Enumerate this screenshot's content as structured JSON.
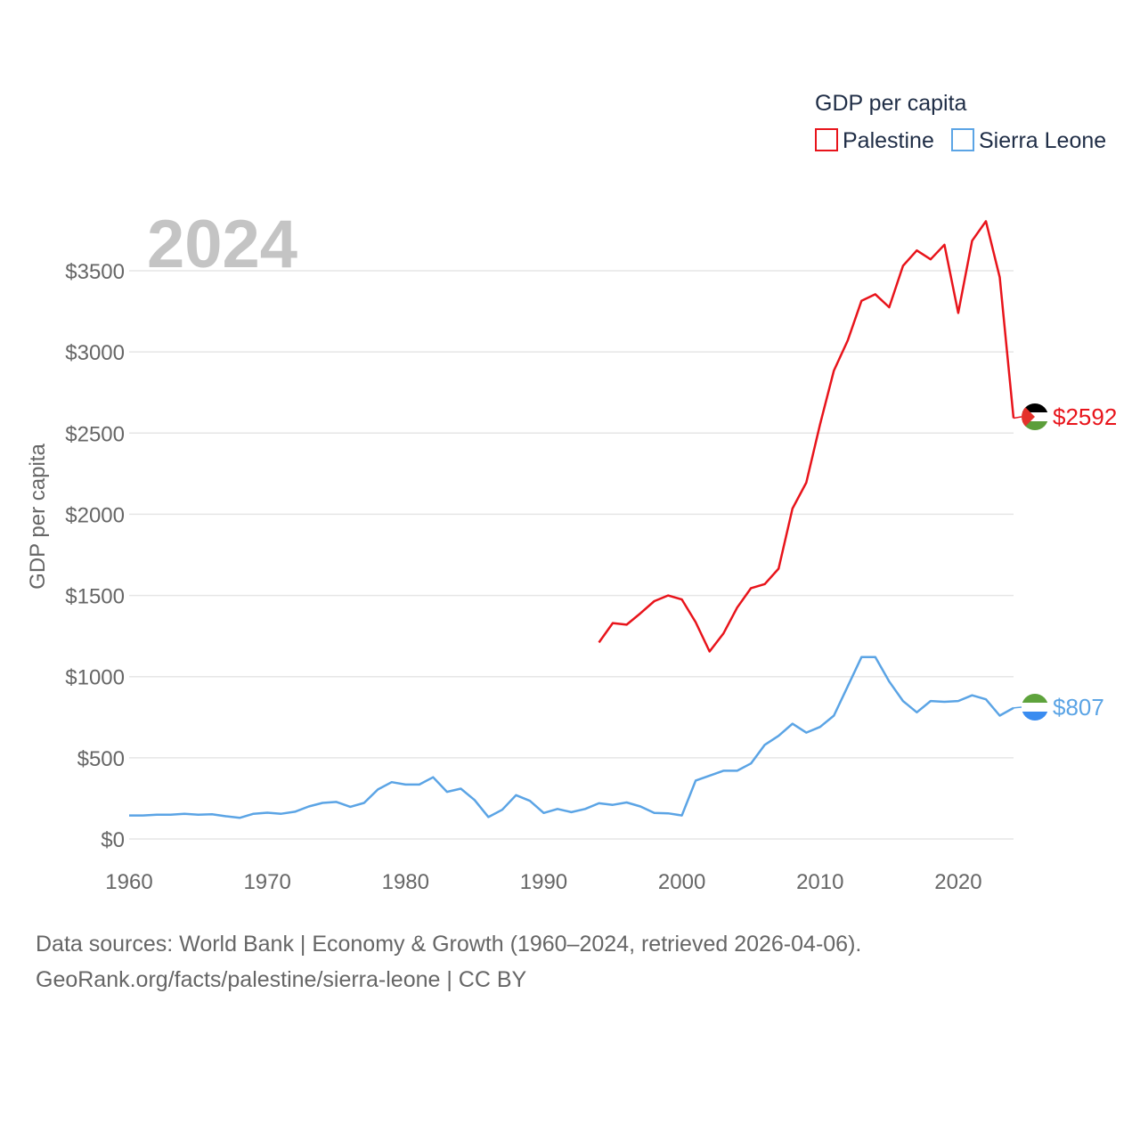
{
  "chart_data": {
    "type": "line",
    "title": "GDP per capita",
    "year_label": "2024",
    "xlabel": "",
    "ylabel": "GDP per capita",
    "xlim": [
      1960,
      2024
    ],
    "ylim": [
      0,
      3750
    ],
    "x_ticks": [
      1960,
      1970,
      1980,
      1990,
      2000,
      2010,
      2020
    ],
    "x_tick_labels": [
      "1960",
      "1970",
      "1980",
      "1990",
      "2000",
      "2010",
      "2020"
    ],
    "y_ticks": [
      0,
      500,
      1000,
      1500,
      2000,
      2500,
      3000,
      3500
    ],
    "y_tick_labels": [
      "$0",
      "$500",
      "$1000",
      "$1500",
      "$2000",
      "$2500",
      "$3000",
      "$3500"
    ],
    "legend_position": "top-right",
    "series": [
      {
        "name": "Palestine",
        "color": "#e8141b",
        "end_label": "$2592",
        "flag": "palestine-flag",
        "x": [
          1994,
          1995,
          1996,
          1997,
          1998,
          1999,
          2000,
          2001,
          2002,
          2003,
          2004,
          2005,
          2006,
          2007,
          2008,
          2009,
          2010,
          2011,
          2012,
          2013,
          2014,
          2015,
          2016,
          2017,
          2018,
          2019,
          2020,
          2021,
          2022,
          2023,
          2024
        ],
        "values": [
          1210,
          1330,
          1320,
          1390,
          1465,
          1500,
          1475,
          1335,
          1155,
          1265,
          1425,
          1545,
          1570,
          1665,
          2035,
          2195,
          2555,
          2885,
          3070,
          3315,
          3355,
          3275,
          3530,
          3625,
          3570,
          3660,
          3240,
          3685,
          3805,
          3460,
          2592
        ]
      },
      {
        "name": "Sierra Leone",
        "color": "#5ba4e5",
        "end_label": "$807",
        "flag": "sierra-leone-flag",
        "x": [
          1960,
          1961,
          1962,
          1963,
          1964,
          1965,
          1966,
          1967,
          1968,
          1969,
          1970,
          1971,
          1972,
          1973,
          1974,
          1975,
          1976,
          1977,
          1978,
          1979,
          1980,
          1981,
          1982,
          1983,
          1984,
          1985,
          1986,
          1987,
          1988,
          1989,
          1990,
          1991,
          1992,
          1993,
          1994,
          1995,
          1996,
          1997,
          1998,
          1999,
          2000,
          2001,
          2002,
          2003,
          2004,
          2005,
          2006,
          2007,
          2008,
          2009,
          2010,
          2011,
          2012,
          2013,
          2014,
          2015,
          2016,
          2017,
          2018,
          2019,
          2020,
          2021,
          2022,
          2023,
          2024
        ],
        "values": [
          145,
          145,
          150,
          150,
          155,
          150,
          152,
          140,
          130,
          155,
          162,
          155,
          168,
          200,
          222,
          228,
          198,
          222,
          305,
          350,
          335,
          335,
          380,
          290,
          310,
          240,
          135,
          180,
          270,
          235,
          160,
          185,
          165,
          185,
          220,
          210,
          225,
          200,
          160,
          158,
          145,
          360,
          390,
          420,
          420,
          465,
          580,
          635,
          710,
          655,
          690,
          760,
          940,
          1120,
          1120,
          970,
          850,
          780,
          850,
          845,
          850,
          885,
          860,
          760,
          807
        ]
      }
    ]
  },
  "footer": {
    "line1": "Data sources: World Bank | Economy & Growth (1960–2024, retrieved 2026-04-06).",
    "line2": "GeoRank.org/facts/palestine/sierra-leone | CC BY"
  }
}
